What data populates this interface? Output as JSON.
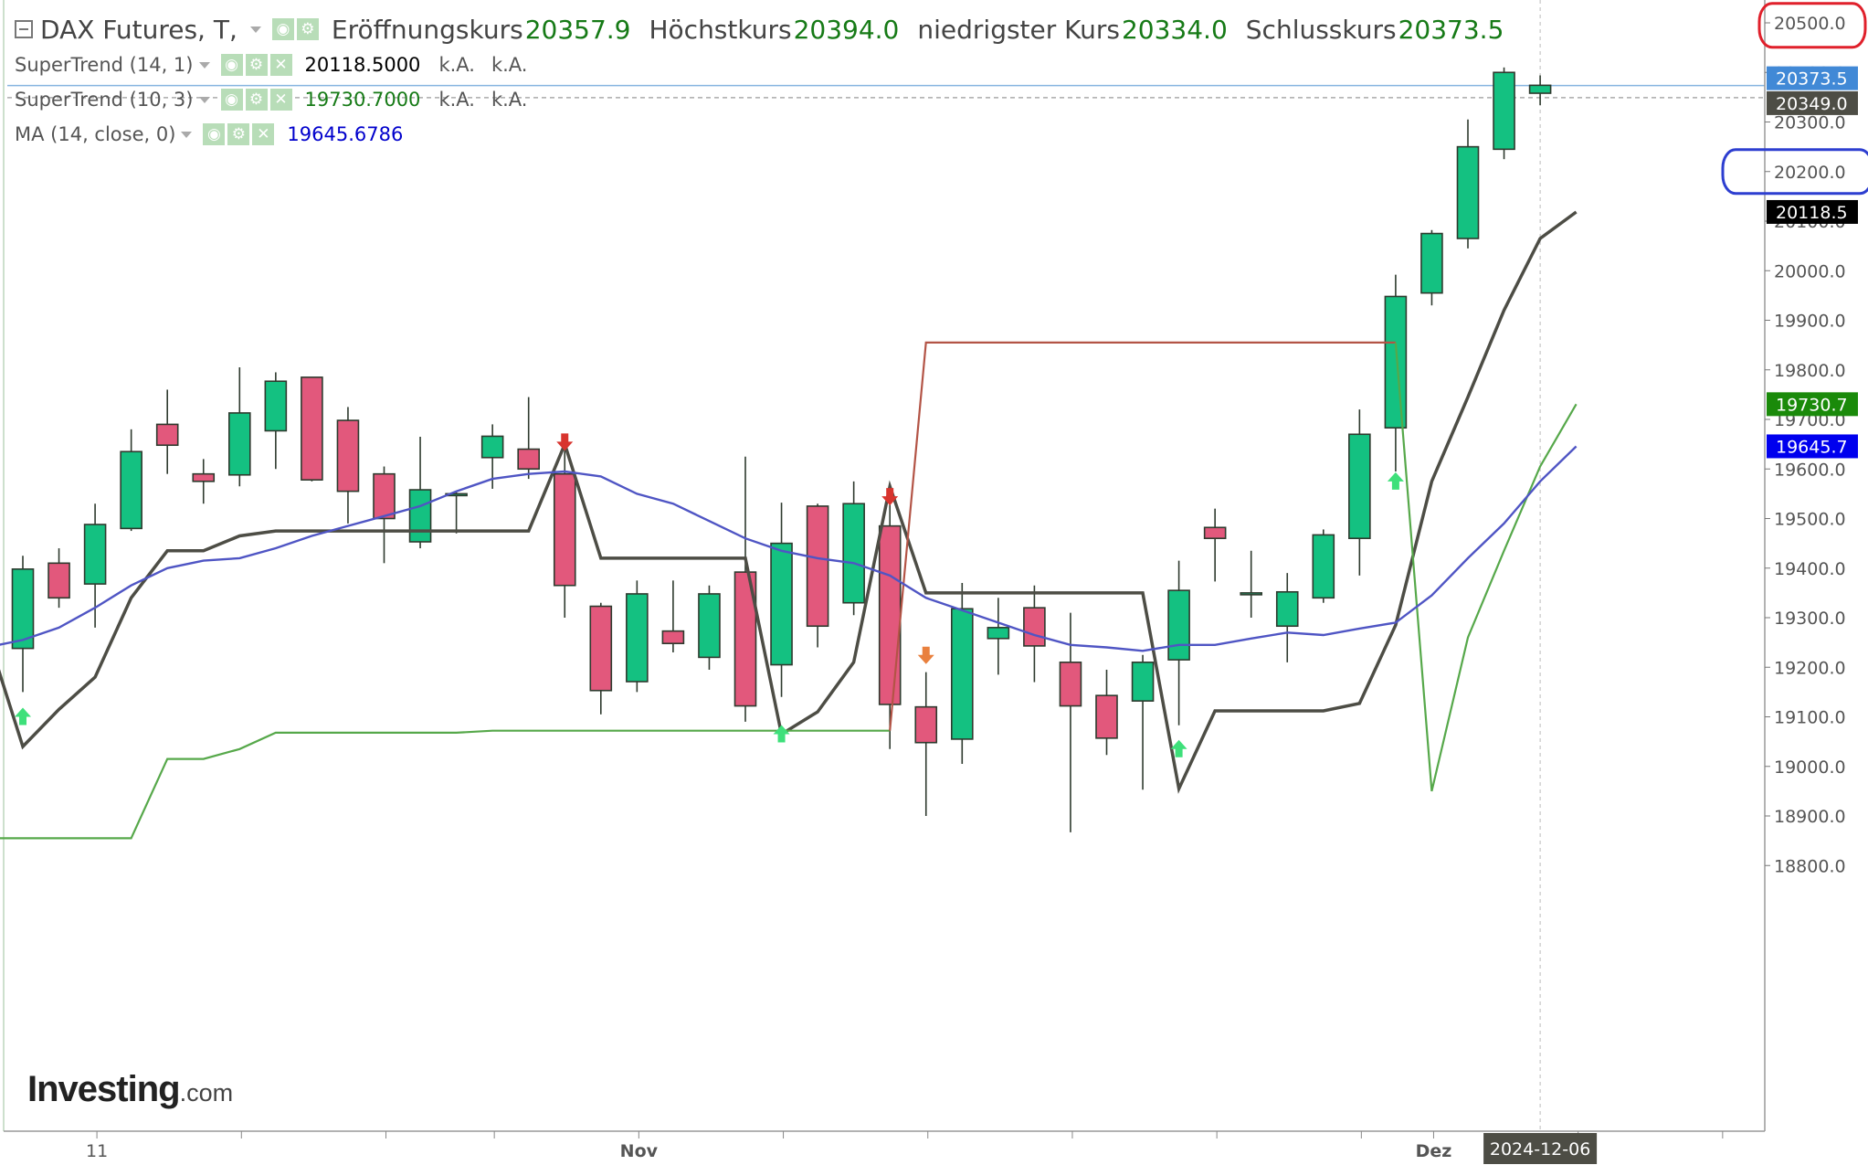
{
  "header": {
    "title": "DAX Futures, T,",
    "open_label": "Eröffnungskurs",
    "open_value": "20357.9",
    "high_label": "Höchstkurs",
    "high_value": "20394.0",
    "low_label": "niedrigster Kurs",
    "low_value": "20334.0",
    "close_label": "Schlusskurs",
    "close_value": "20373.5"
  },
  "indicators": [
    {
      "name": "SuperTrend (14, 1)",
      "value": "20118.5000",
      "value_color": "#000000",
      "na1": "k.A.",
      "na2": "k.A."
    },
    {
      "name": "SuperTrend (10, 3)",
      "value": "19730.7000",
      "value_color": "#167a16",
      "na1": "k.A.",
      "na2": "k.A."
    },
    {
      "name": "MA (14, close, 0)",
      "value": "19645.6786",
      "value_color": "#0000cc"
    }
  ],
  "logo": {
    "main": "Investing",
    "suffix": ".com"
  },
  "colors": {
    "up": "#14c181",
    "down": "#e2587c",
    "st14": "#4d4d45",
    "st10": "#56a84a",
    "st_red": "#b35446",
    "ma": "#4f55c4",
    "annot_red": "#e0202b",
    "annot_blue": "#2d3ed0",
    "price_tag": "#4189d6",
    "last_tag": "#4d4d45"
  },
  "chart_data": {
    "type": "candlestick",
    "ylim": [
      18800,
      20500
    ],
    "y_ticks": [
      18800,
      18900,
      19000,
      19100,
      19200,
      19300,
      19400,
      19500,
      19600,
      19700,
      19800,
      19900,
      20000,
      20100,
      20200,
      20300,
      20400,
      20500
    ],
    "y_tick_labels": [
      "18800.0",
      "18900.0",
      "19000.0",
      "19100.0",
      "19200.0",
      "19300.0",
      "19400.0",
      "19500.0",
      "19600.0",
      "19700.0",
      "19800.0",
      "19900.0",
      "20000.0",
      "20100.0",
      "20200.0",
      "20300.0",
      "20400.0",
      "20500.0"
    ],
    "x_labels": [
      {
        "index": 2,
        "text": "11"
      },
      {
        "index": 17,
        "text": "Nov"
      },
      {
        "index": 39,
        "text": "Dez"
      }
    ],
    "x_tick_index": [
      2,
      6,
      10,
      13,
      17,
      21,
      25,
      29,
      33,
      37,
      39,
      43,
      47
    ],
    "last_date_label": "2024-12-06",
    "candles": [
      {
        "o": 19238,
        "h": 19425,
        "l": 19150,
        "c": 19398
      },
      {
        "o": 19410,
        "h": 19440,
        "l": 19320,
        "c": 19340
      },
      {
        "o": 19368,
        "h": 19530,
        "l": 19280,
        "c": 19488
      },
      {
        "o": 19480,
        "h": 19680,
        "l": 19475,
        "c": 19635
      },
      {
        "o": 19690,
        "h": 19760,
        "l": 19590,
        "c": 19648
      },
      {
        "o": 19590,
        "h": 19620,
        "l": 19530,
        "c": 19575
      },
      {
        "o": 19588,
        "h": 19805,
        "l": 19565,
        "c": 19713
      },
      {
        "o": 19677,
        "h": 19795,
        "l": 19600,
        "c": 19777
      },
      {
        "o": 19785,
        "h": 19785,
        "l": 19575,
        "c": 19578
      },
      {
        "o": 19698,
        "h": 19725,
        "l": 19490,
        "c": 19555
      },
      {
        "o": 19590,
        "h": 19605,
        "l": 19410,
        "c": 19500
      },
      {
        "o": 19453,
        "h": 19665,
        "l": 19440,
        "c": 19558
      },
      {
        "o": 19550,
        "h": 19555,
        "l": 19470,
        "c": 19550
      },
      {
        "o": 19623,
        "h": 19690,
        "l": 19560,
        "c": 19666
      },
      {
        "o": 19640,
        "h": 19745,
        "l": 19580,
        "c": 19600
      },
      {
        "o": 19590,
        "h": 19665,
        "l": 19300,
        "c": 19365
      },
      {
        "o": 19323,
        "h": 19330,
        "l": 19105,
        "c": 19153
      },
      {
        "o": 19171,
        "h": 19375,
        "l": 19150,
        "c": 19348
      },
      {
        "o": 19273,
        "h": 19375,
        "l": 19230,
        "c": 19248
      },
      {
        "o": 19220,
        "h": 19365,
        "l": 19195,
        "c": 19348
      },
      {
        "o": 19392,
        "h": 19625,
        "l": 19090,
        "c": 19122
      },
      {
        "o": 19205,
        "h": 19532,
        "l": 19140,
        "c": 19450
      },
      {
        "o": 19525,
        "h": 19530,
        "l": 19240,
        "c": 19283
      },
      {
        "o": 19330,
        "h": 19575,
        "l": 19305,
        "c": 19530
      },
      {
        "o": 19485,
        "h": 19565,
        "l": 19035,
        "c": 19125
      },
      {
        "o": 19120,
        "h": 19190,
        "l": 18900,
        "c": 19048
      },
      {
        "o": 19055,
        "h": 19370,
        "l": 19005,
        "c": 19318
      },
      {
        "o": 19258,
        "h": 19340,
        "l": 19185,
        "c": 19280
      },
      {
        "o": 19320,
        "h": 19365,
        "l": 19170,
        "c": 19243
      },
      {
        "o": 19210,
        "h": 19310,
        "l": 18867,
        "c": 19122
      },
      {
        "o": 19143,
        "h": 19195,
        "l": 19023,
        "c": 19057
      },
      {
        "o": 19132,
        "h": 19225,
        "l": 18953,
        "c": 19210
      },
      {
        "o": 19215,
        "h": 19415,
        "l": 19083,
        "c": 19355
      },
      {
        "o": 19482,
        "h": 19520,
        "l": 19373,
        "c": 19460
      },
      {
        "o": 19350,
        "h": 19435,
        "l": 19300,
        "c": 19350
      },
      {
        "o": 19283,
        "h": 19390,
        "l": 19210,
        "c": 19352
      },
      {
        "o": 19340,
        "h": 19478,
        "l": 19330,
        "c": 19467
      },
      {
        "o": 19460,
        "h": 19720,
        "l": 19385,
        "c": 19670
      },
      {
        "o": 19683,
        "h": 19992,
        "l": 19595,
        "c": 19948
      },
      {
        "o": 19955,
        "h": 20082,
        "l": 19930,
        "c": 20075
      },
      {
        "o": 20065,
        "h": 20305,
        "l": 20045,
        "c": 20250
      },
      {
        "o": 20245,
        "h": 20410,
        "l": 20225,
        "c": 20400
      },
      {
        "o": 20358,
        "h": 20394,
        "l": 20334,
        "c": 20374
      }
    ],
    "series": [
      {
        "name": "SuperTrend (14, 1)",
        "segments": [
          {
            "color_key": "st14",
            "points": [
              [
                -1,
                19270
              ],
              [
                0,
                19040
              ],
              [
                1,
                19115
              ],
              [
                2,
                19180
              ],
              [
                3,
                19340
              ],
              [
                4,
                19435
              ],
              [
                5,
                19435
              ],
              [
                6,
                19465
              ],
              [
                7,
                19475
              ],
              [
                8,
                19475
              ],
              [
                9,
                19475
              ],
              [
                10,
                19475
              ],
              [
                11,
                19475
              ],
              [
                12,
                19475
              ],
              [
                13,
                19475
              ],
              [
                14,
                19475
              ],
              [
                15,
                19650
              ],
              [
                16,
                19420
              ],
              [
                17,
                19420
              ],
              [
                18,
                19420
              ],
              [
                19,
                19420
              ],
              [
                20,
                19420
              ],
              [
                21,
                19065
              ],
              [
                22,
                19110
              ],
              [
                23,
                19210
              ],
              [
                24,
                19565
              ],
              [
                25,
                19350
              ],
              [
                26,
                19350
              ],
              [
                27,
                19350
              ],
              [
                28,
                19350
              ],
              [
                29,
                19350
              ],
              [
                30,
                19350
              ],
              [
                31,
                19350
              ],
              [
                32,
                18955
              ],
              [
                33,
                19112
              ],
              [
                34,
                19112
              ],
              [
                35,
                19112
              ],
              [
                36,
                19112
              ],
              [
                37,
                19127
              ],
              [
                38,
                19285
              ],
              [
                39,
                19575
              ],
              [
                40,
                19745
              ],
              [
                41,
                19920
              ],
              [
                42,
                20065
              ],
              [
                43,
                20118.5
              ]
            ]
          }
        ]
      },
      {
        "name": "SuperTrend (10, 3)",
        "segments": [
          {
            "color_key": "st10",
            "points": [
              [
                -1,
                18855
              ],
              [
                0,
                18855
              ],
              [
                1,
                18855
              ],
              [
                2,
                18855
              ],
              [
                3,
                18855
              ],
              [
                4,
                19015
              ],
              [
                5,
                19015
              ],
              [
                6,
                19035
              ],
              [
                7,
                19068
              ],
              [
                8,
                19068
              ],
              [
                9,
                19068
              ],
              [
                10,
                19068
              ],
              [
                11,
                19068
              ],
              [
                12,
                19068
              ],
              [
                13,
                19072
              ],
              [
                14,
                19072
              ],
              [
                15,
                19072
              ],
              [
                16,
                19072
              ],
              [
                17,
                19072
              ],
              [
                18,
                19072
              ],
              [
                19,
                19072
              ],
              [
                20,
                19072
              ],
              [
                21,
                19072
              ],
              [
                22,
                19072
              ],
              [
                23,
                19072
              ],
              [
                24,
                19072
              ]
            ]
          },
          {
            "color_key": "st_red",
            "points": [
              [
                24,
                19072
              ],
              [
                25,
                19855
              ],
              [
                26,
                19855
              ],
              [
                27,
                19855
              ],
              [
                28,
                19855
              ],
              [
                29,
                19855
              ],
              [
                30,
                19855
              ],
              [
                31,
                19855
              ],
              [
                32,
                19855
              ],
              [
                33,
                19855
              ],
              [
                34,
                19855
              ],
              [
                35,
                19855
              ],
              [
                36,
                19855
              ],
              [
                37,
                19855
              ],
              [
                38,
                19855
              ]
            ]
          },
          {
            "color_key": "st10",
            "points": [
              [
                38,
                19855
              ],
              [
                39,
                18950
              ],
              [
                40,
                19260
              ],
              [
                41,
                19435
              ],
              [
                42,
                19605
              ],
              [
                43,
                19730.7
              ]
            ]
          }
        ]
      },
      {
        "name": "MA (14, close, 0)",
        "segments": [
          {
            "color_key": "ma",
            "points": [
              [
                -1,
                19240
              ],
              [
                0,
                19255
              ],
              [
                1,
                19280
              ],
              [
                2,
                19320
              ],
              [
                3,
                19365
              ],
              [
                4,
                19400
              ],
              [
                5,
                19415
              ],
              [
                6,
                19420
              ],
              [
                7,
                19440
              ],
              [
                8,
                19465
              ],
              [
                9,
                19485
              ],
              [
                10,
                19505
              ],
              [
                11,
                19525
              ],
              [
                12,
                19555
              ],
              [
                13,
                19580
              ],
              [
                14,
                19590
              ],
              [
                15,
                19595
              ],
              [
                16,
                19585
              ],
              [
                17,
                19550
              ],
              [
                18,
                19530
              ],
              [
                19,
                19495
              ],
              [
                20,
                19460
              ],
              [
                21,
                19435
              ],
              [
                22,
                19420
              ],
              [
                23,
                19410
              ],
              [
                24,
                19385
              ],
              [
                25,
                19340
              ],
              [
                26,
                19315
              ],
              [
                27,
                19290
              ],
              [
                28,
                19265
              ],
              [
                29,
                19245
              ],
              [
                30,
                19240
              ],
              [
                31,
                19233
              ],
              [
                32,
                19245
              ],
              [
                33,
                19245
              ],
              [
                34,
                19258
              ],
              [
                35,
                19270
              ],
              [
                36,
                19265
              ],
              [
                37,
                19278
              ],
              [
                38,
                19290
              ],
              [
                39,
                19345
              ],
              [
                40,
                19420
              ],
              [
                41,
                19490
              ],
              [
                42,
                19575
              ],
              [
                43,
                19645.7
              ]
            ]
          }
        ]
      }
    ],
    "markers": [
      {
        "index": 0,
        "y": 19100,
        "dir": "up",
        "color_key": "up_arrow"
      },
      {
        "index": 15,
        "y": 19655,
        "dir": "down",
        "color_key": "down_red"
      },
      {
        "index": 21,
        "y": 19065,
        "dir": "up",
        "color_key": "up_arrow"
      },
      {
        "index": 24,
        "y": 19545,
        "dir": "down",
        "color_key": "down_red"
      },
      {
        "index": 25,
        "y": 19225,
        "dir": "down",
        "color_key": "down_orange"
      },
      {
        "index": 32,
        "y": 19035,
        "dir": "up",
        "color_key": "up_arrow"
      },
      {
        "index": 38,
        "y": 19575,
        "dir": "up",
        "color_key": "up_arrow"
      }
    ],
    "price_tags": [
      {
        "text": "20373.5",
        "y": 20373.5,
        "bg": "#4189d6",
        "fg": "#ffffff"
      },
      {
        "text": "20349.0",
        "y": 20349,
        "bg": "#4d4d45",
        "fg": "#ffffff"
      },
      {
        "text": "20118.5",
        "y": 20118.5,
        "bg": "#000000",
        "fg": "#ffffff"
      },
      {
        "text": "19730.7",
        "y": 19730.7,
        "bg": "#1a8a0a",
        "fg": "#ffffff"
      },
      {
        "text": "19645.7",
        "y": 19645.7,
        "bg": "#0000ee",
        "fg": "#ffffff"
      }
    ],
    "horizontal_lines": [
      {
        "y": 20373.5,
        "style": "solid",
        "color": "#86b4e0"
      },
      {
        "y": 20349,
        "style": "dashed",
        "color": "#aaaaaa"
      }
    ],
    "annotations": [
      {
        "shape": "ellipse",
        "y": 20495,
        "color_key": "annot_red"
      },
      {
        "shape": "ellipse",
        "y": 20200,
        "color_key": "annot_blue"
      }
    ]
  }
}
